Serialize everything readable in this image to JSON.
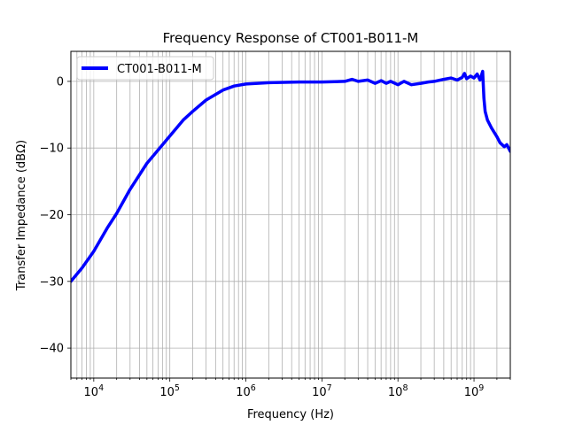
{
  "chart_data": {
    "type": "line",
    "title": "Frequency Response of CT001-B011-M",
    "xlabel": "Frequency (Hz)",
    "ylabel": "Transfer Impedance (dBΩ)",
    "xscale": "log",
    "xlim": [
      5000,
      3000000000
    ],
    "ylim": [
      -44.5,
      4.5
    ],
    "xticks": [
      {
        "value": 10000,
        "base": "10",
        "exp": "4"
      },
      {
        "value": 100000,
        "base": "10",
        "exp": "5"
      },
      {
        "value": 1000000,
        "base": "10",
        "exp": "6"
      },
      {
        "value": 10000000,
        "base": "10",
        "exp": "7"
      },
      {
        "value": 100000000,
        "base": "10",
        "exp": "8"
      },
      {
        "value": 1000000000,
        "base": "10",
        "exp": "9"
      }
    ],
    "yticks": [
      {
        "value": 0,
        "label": "0"
      },
      {
        "value": -10,
        "label": "−10"
      },
      {
        "value": -20,
        "label": "−20"
      },
      {
        "value": -30,
        "label": "−30"
      },
      {
        "value": -40,
        "label": "−40"
      }
    ],
    "grid": true,
    "legend_position": "top-left",
    "series": [
      {
        "name": "CT001-B011-M",
        "color": "#0000ff",
        "x": [
          5000,
          7000,
          10000,
          15000,
          20000,
          30000,
          50000,
          70000,
          100000,
          150000,
          200000,
          300000,
          500000,
          700000,
          1000000,
          2000000,
          5000000,
          10000000,
          20000000,
          25000000,
          30000000,
          40000000,
          50000000,
          60000000,
          70000000,
          80000000,
          100000000,
          120000000,
          150000000,
          200000000,
          250000000,
          300000000,
          400000000,
          500000000,
          600000000,
          700000000,
          750000000,
          800000000,
          900000000,
          1000000000,
          1100000000,
          1200000000,
          1300000000,
          1350000000,
          1400000000,
          1500000000,
          1700000000,
          2000000000,
          2200000000,
          2500000000,
          2700000000,
          3000000000
        ],
        "y": [
          -30,
          -28,
          -25.5,
          -22,
          -19.8,
          -16.2,
          -12.3,
          -10.3,
          -8.2,
          -5.8,
          -4.5,
          -2.8,
          -1.3,
          -0.7,
          -0.4,
          -0.2,
          -0.1,
          -0.1,
          0,
          0.3,
          0,
          0.2,
          -0.3,
          0.1,
          -0.3,
          0,
          -0.5,
          0,
          -0.5,
          -0.3,
          -0.1,
          0,
          0.3,
          0.5,
          0.2,
          0.6,
          1.2,
          0.4,
          0.8,
          0.5,
          1.1,
          0.2,
          1.5,
          -2.5,
          -4.5,
          -5.8,
          -7,
          -8.3,
          -9.2,
          -9.8,
          -9.5,
          -10.5
        ]
      }
    ]
  }
}
